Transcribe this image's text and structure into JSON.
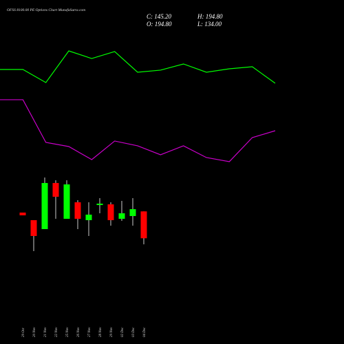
{
  "header": {
    "title": "OFSS 8100.00 PE Options Chart MunafaSutra.com",
    "close": "C: 145.20",
    "high": "H: 194.80",
    "open": "O: 194.80",
    "low": "L: 134.00"
  },
  "chart_data": [
    {
      "type": "line",
      "x": [
        0,
        1,
        2,
        3,
        4,
        5,
        6,
        7,
        8,
        9,
        10,
        11,
        12
      ],
      "xlim": [
        0,
        12
      ],
      "ylim": [
        -50,
        585
      ],
      "series": [
        {
          "color": "#00ff00",
          "values": [
            456.7,
            456.7,
            432.6,
            491.0,
            477.0,
            489.8,
            451.7,
            455.5,
            466.9,
            451.7,
            458.0,
            461.8,
            431.3
          ]
        },
        {
          "color": "#cc00cc",
          "values": [
            400.9,
            400.9,
            322.1,
            314.5,
            290.4,
            324.7,
            315.8,
            299.3,
            315.8,
            294.2,
            286.6,
            331.0,
            343.7
          ]
        }
      ]
    },
    {
      "type": "candlestick",
      "ylim": [
        -50,
        585
      ],
      "up_color": "#00ff00",
      "down_color": "#ff0000",
      "categories": [
        "29 Oct",
        "20 Nov",
        "21 Nov",
        "22 Nov",
        "25 Nov",
        "26 Nov",
        "27 Nov",
        "28 Nov",
        "29 Nov",
        "02 Dec",
        "03 Dec",
        "04 Dec"
      ],
      "open": [
        192.6,
        178.6,
        162.1,
        247.2,
        181.1,
        211.6,
        178.6,
        206.5,
        207.8,
        181.1,
        186.2,
        194.8
      ],
      "high": [
        192.6,
        178.6,
        257.3,
        252.3,
        252.3,
        215.4,
        211.6,
        219.2,
        211.6,
        214.2,
        219.2,
        194.8
      ],
      "low": [
        187.5,
        121.4,
        162.1,
        181.1,
        181.1,
        162.1,
        149.4,
        191.3,
        168.4,
        177.3,
        168.4,
        134.0
      ],
      "close": [
        187.5,
        149.4,
        247.2,
        221.8,
        244.6,
        181.1,
        188.8,
        209.1,
        178.6,
        191.3,
        198.9,
        145.2
      ]
    }
  ]
}
